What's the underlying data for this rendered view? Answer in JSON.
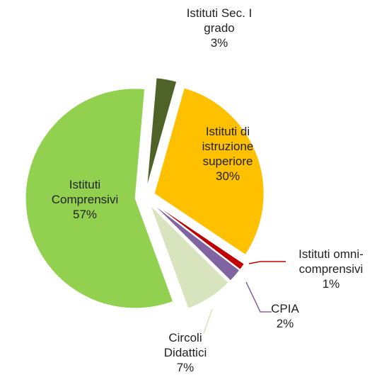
{
  "chart_data": {
    "type": "pie",
    "categories": [
      "Istituti Sec. I grado",
      "Istituti di istruzione superiore",
      "Istituti omni-comprensivi",
      "CPIA",
      "Circoli Didattici",
      "Istituti Comprensivi"
    ],
    "values": [
      3,
      30,
      1,
      2,
      7,
      57
    ],
    "value_labels": [
      "3%",
      "30%",
      "1%",
      "2%",
      "7%",
      "57%"
    ],
    "colors": [
      "#4f6228",
      "#ffc000",
      "#c00000",
      "#8064a2",
      "#d7e4bd",
      "#92d050"
    ]
  }
}
